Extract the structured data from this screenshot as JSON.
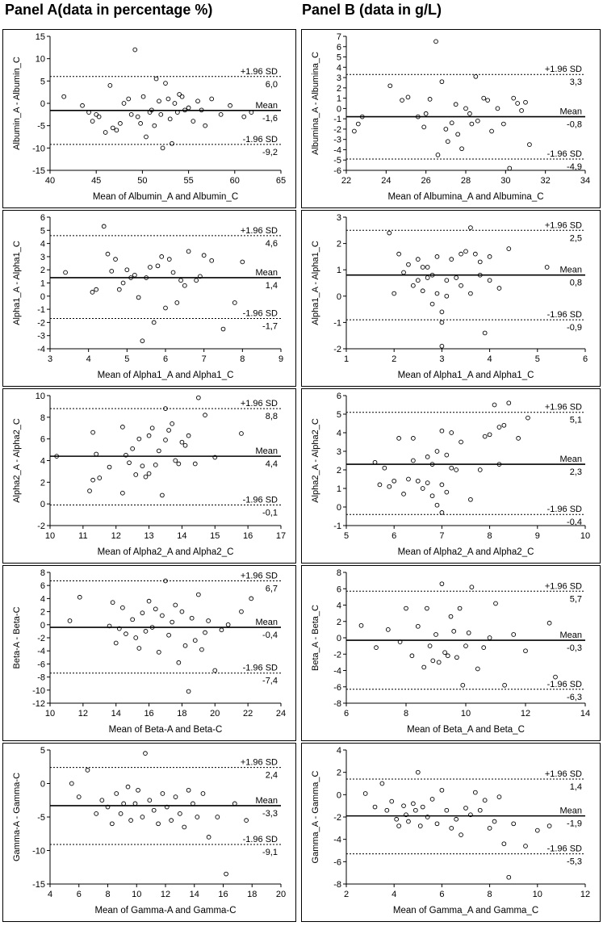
{
  "panels": {
    "a_title": "Panel A(data in percentage %)",
    "b_title": "Panel B (data in g/L)"
  },
  "chart_data": [
    {
      "type": "scatter",
      "panel": "A",
      "row": 1,
      "xlabel": "Mean of Albumin_A and Albumin_C",
      "ylabel": "Albumin_A - Albumin_C",
      "xlim": [
        40,
        65
      ],
      "xticks": [
        40,
        45,
        50,
        55,
        60,
        65
      ],
      "ylim": [
        -15,
        15
      ],
      "yticks": [
        -15,
        -10,
        -5,
        0,
        5,
        10,
        15
      ],
      "mean": -1.6,
      "upper": 6.0,
      "lower": -9.2,
      "upper_label": "+1.96 SD",
      "mean_label": "Mean",
      "lower_label": "-1.96 SD",
      "upper_value": "6,0",
      "mean_value": "-1,6",
      "lower_value": "-9,2",
      "x": [
        41.5,
        43.5,
        44.2,
        44.6,
        45.0,
        45.3,
        46.0,
        46.5,
        46.8,
        47.2,
        47.6,
        48.0,
        48.5,
        48.8,
        49.2,
        49.5,
        49.8,
        50.1,
        50.4,
        50.8,
        51.0,
        51.3,
        51.5,
        51.8,
        52.0,
        52.2,
        52.5,
        52.8,
        53.0,
        53.2,
        53.5,
        53.8,
        54.0,
        54.3,
        54.6,
        55.0,
        55.5,
        56.0,
        56.4,
        56.8,
        57.5,
        58.5,
        59.5,
        61.0,
        61.8
      ],
      "y": [
        1.5,
        -0.5,
        -2.0,
        -4.0,
        -2.5,
        -3.0,
        -6.5,
        4.0,
        -5.5,
        -6.0,
        -4.5,
        0.0,
        1.0,
        -2.5,
        12.0,
        -3.0,
        -4.5,
        1.5,
        -7.5,
        -2.0,
        -1.5,
        -5.0,
        5.5,
        0.5,
        -2.5,
        -10.0,
        4.5,
        1.0,
        -3.5,
        -9.0,
        0.0,
        -2.0,
        2.0,
        1.5,
        -1.5,
        -1.0,
        -4.0,
        0.5,
        -1.5,
        -5.0,
        1.0,
        -2.5,
        -0.5,
        -3.0,
        -2.0
      ]
    },
    {
      "type": "scatter",
      "panel": "B",
      "row": 1,
      "xlabel": "Mean of Albumina_A and Albumina_C",
      "ylabel": "Albumina_A - Albumina_C",
      "xlim": [
        22,
        34
      ],
      "xticks": [
        22,
        24,
        26,
        28,
        30,
        32,
        34
      ],
      "ylim": [
        -6,
        7
      ],
      "yticks": [
        -6,
        -5,
        -4,
        -3,
        -2,
        -1,
        0,
        1,
        2,
        3,
        4,
        5,
        6,
        7
      ],
      "mean": -0.8,
      "upper": 3.3,
      "lower": -4.9,
      "upper_label": "+1.96 SD",
      "mean_label": "Mean",
      "lower_label": "-1.96 SD",
      "upper_value": "3,3",
      "mean_value": "-0,8",
      "lower_value": "-4,9",
      "x": [
        22.4,
        22.6,
        22.8,
        24.2,
        24.8,
        25.1,
        25.6,
        25.9,
        26.0,
        26.2,
        26.5,
        26.6,
        26.8,
        27.0,
        27.1,
        27.3,
        27.5,
        27.6,
        27.8,
        28.0,
        28.2,
        28.3,
        28.5,
        28.6,
        28.9,
        29.1,
        29.3,
        29.6,
        29.9,
        30.2,
        30.4,
        30.6,
        30.8,
        31.0,
        31.2
      ],
      "y": [
        -2.2,
        -1.5,
        -0.8,
        2.2,
        0.8,
        1.1,
        -0.8,
        -1.8,
        -0.5,
        0.9,
        6.5,
        -4.5,
        2.6,
        -2.0,
        -3.2,
        -1.4,
        0.4,
        -2.5,
        -3.9,
        0.0,
        -0.5,
        -1.5,
        3.1,
        -1.2,
        1.0,
        0.8,
        -2.2,
        0.0,
        -1.5,
        -5.8,
        1.0,
        0.5,
        -0.2,
        0.6,
        -3.5
      ]
    },
    {
      "type": "scatter",
      "panel": "A",
      "row": 2,
      "xlabel": "Mean of Alpha1_A and Alpha1_C",
      "ylabel": "Alpha1_A - Alpha1_C",
      "xlim": [
        3,
        9
      ],
      "xticks": [
        3,
        4,
        5,
        6,
        7,
        8,
        9
      ],
      "ylim": [
        -4,
        6
      ],
      "yticks": [
        -4,
        -3,
        -2,
        -1,
        0,
        1,
        2,
        3,
        4,
        5,
        6
      ],
      "mean": 1.4,
      "upper": 4.6,
      "lower": -1.7,
      "upper_label": "+1.96 SD",
      "mean_label": "Mean",
      "lower_label": "-1.96 SD",
      "upper_value": "4,6",
      "mean_value": "1,4",
      "lower_value": "-1,7",
      "x": [
        3.4,
        4.1,
        4.2,
        4.4,
        4.5,
        4.6,
        4.7,
        4.8,
        4.9,
        5.0,
        5.1,
        5.2,
        5.3,
        5.4,
        5.5,
        5.6,
        5.7,
        5.8,
        5.9,
        6.0,
        6.1,
        6.2,
        6.3,
        6.4,
        6.5,
        6.6,
        6.8,
        6.9,
        7.0,
        7.2,
        7.5,
        7.8,
        8.0
      ],
      "y": [
        1.8,
        0.3,
        0.5,
        5.3,
        3.2,
        1.9,
        2.8,
        0.5,
        1.0,
        2.0,
        1.4,
        1.6,
        -0.1,
        -3.4,
        1.4,
        2.2,
        -2.0,
        2.3,
        3.0,
        -0.9,
        2.8,
        1.8,
        -0.5,
        1.2,
        0.8,
        3.4,
        1.2,
        1.5,
        3.1,
        2.7,
        -2.5,
        -0.5,
        2.6
      ]
    },
    {
      "type": "scatter",
      "panel": "B",
      "row": 2,
      "xlabel": "Mean of Alpha1_A and Alpha1_C",
      "ylabel": "Alpha1_A - Alpha1_C",
      "xlim": [
        1,
        6
      ],
      "xticks": [
        1,
        2,
        3,
        4,
        5,
        6
      ],
      "ylim": [
        -2,
        3
      ],
      "yticks": [
        -2,
        -1,
        0,
        1,
        2,
        3
      ],
      "mean": 0.8,
      "upper": 2.5,
      "lower": -0.9,
      "upper_label": "+1.96 SD",
      "mean_label": "Mean",
      "lower_label": "-1.96 SD",
      "upper_value": "2,5",
      "mean_value": "0,8",
      "lower_value": "-0,9",
      "x": [
        1.9,
        2.0,
        2.1,
        2.2,
        2.3,
        2.4,
        2.5,
        2.5,
        2.6,
        2.6,
        2.7,
        2.7,
        2.8,
        2.8,
        2.9,
        2.9,
        3.0,
        3.0,
        3.0,
        3.1,
        3.1,
        3.2,
        3.3,
        3.4,
        3.4,
        3.5,
        3.6,
        3.6,
        3.7,
        3.8,
        3.8,
        3.9,
        4.0,
        4.0,
        4.2,
        4.4,
        5.2
      ],
      "y": [
        2.4,
        0.1,
        1.6,
        0.9,
        1.2,
        0.4,
        1.4,
        0.6,
        1.1,
        0.2,
        0.7,
        1.1,
        -0.3,
        0.8,
        1.5,
        0.1,
        -1.0,
        -0.6,
        -1.9,
        0.6,
        0.0,
        1.4,
        0.7,
        1.6,
        0.4,
        1.7,
        2.6,
        0.1,
        1.6,
        1.3,
        0.8,
        -1.4,
        1.5,
        0.6,
        0.3,
        1.8,
        1.1
      ]
    },
    {
      "type": "scatter",
      "panel": "A",
      "row": 3,
      "xlabel": "Mean of Alpha2_A and Alpha2_C",
      "ylabel": "Alpha2_A - Alpha2_C",
      "xlim": [
        10,
        17
      ],
      "xticks": [
        10,
        11,
        12,
        13,
        14,
        15,
        16,
        17
      ],
      "ylim": [
        -2,
        10
      ],
      "yticks": [
        -2,
        0,
        2,
        4,
        6,
        8,
        10
      ],
      "mean": 4.4,
      "upper": 8.8,
      "lower": -0.1,
      "upper_label": "+1.96 SD",
      "mean_label": "Mean",
      "lower_label": "-1.96 SD",
      "upper_value": "8,8",
      "mean_value": "4,4",
      "lower_value": "-0,1",
      "x": [
        10.2,
        11.2,
        11.3,
        11.3,
        11.4,
        11.5,
        11.8,
        12.2,
        12.2,
        12.3,
        12.4,
        12.5,
        12.6,
        12.7,
        12.8,
        12.9,
        13.0,
        13.0,
        13.1,
        13.2,
        13.3,
        13.4,
        13.5,
        13.5,
        13.6,
        13.7,
        13.8,
        13.9,
        14.0,
        14.1,
        14.2,
        14.4,
        14.5,
        14.7,
        15.0,
        15.8
      ],
      "y": [
        4.4,
        1.2,
        2.2,
        6.6,
        4.6,
        2.4,
        3.4,
        7.1,
        1.0,
        4.5,
        3.8,
        5.1,
        2.7,
        6.0,
        3.5,
        2.5,
        6.3,
        2.8,
        7.0,
        3.6,
        4.9,
        0.8,
        5.9,
        8.8,
        6.8,
        7.4,
        4.0,
        3.7,
        5.7,
        5.4,
        6.3,
        3.7,
        9.8,
        8.2,
        4.3,
        6.5
      ]
    },
    {
      "type": "scatter",
      "panel": "B",
      "row": 3,
      "xlabel": "Mean of Alpha2_A and Alpha2_C",
      "ylabel": "Alpha2_A - Alpha2_C",
      "xlim": [
        5,
        10
      ],
      "xticks": [
        5,
        6,
        7,
        8,
        9,
        10
      ],
      "ylim": [
        -1,
        6
      ],
      "yticks": [
        -1,
        0,
        1,
        2,
        3,
        4,
        5,
        6
      ],
      "mean": 2.3,
      "upper": 5.1,
      "lower": -0.4,
      "upper_label": "+1.96 SD",
      "mean_label": "Mean",
      "lower_label": "-1.96 SD",
      "upper_value": "5,1",
      "mean_value": "2,3",
      "lower_value": "-0,4",
      "x": [
        5.6,
        5.7,
        5.8,
        5.9,
        6.0,
        6.1,
        6.2,
        6.3,
        6.4,
        6.4,
        6.5,
        6.6,
        6.7,
        6.7,
        6.8,
        6.8,
        6.9,
        6.9,
        7.0,
        7.0,
        7.0,
        7.1,
        7.1,
        7.2,
        7.2,
        7.3,
        7.4,
        7.6,
        7.8,
        7.9,
        8.0,
        8.1,
        8.2,
        8.2,
        8.3,
        8.4,
        8.6,
        8.8
      ],
      "y": [
        2.4,
        1.2,
        2.1,
        1.1,
        1.4,
        3.7,
        0.7,
        1.5,
        2.5,
        3.7,
        1.4,
        1.0,
        1.3,
        2.7,
        0.6,
        2.3,
        3.0,
        0.1,
        4.1,
        -0.3,
        1.2,
        2.8,
        0.8,
        2.1,
        4.0,
        2.0,
        3.5,
        0.4,
        2.0,
        3.8,
        3.9,
        5.5,
        4.3,
        2.3,
        4.4,
        5.6,
        3.7,
        4.8
      ]
    },
    {
      "type": "scatter",
      "panel": "A",
      "row": 4,
      "xlabel": "Mean of Beta-A and Beta-C",
      "ylabel": "Beta-A - Beta-C",
      "xlim": [
        10,
        24
      ],
      "xticks": [
        10,
        12,
        14,
        16,
        18,
        20,
        22,
        24
      ],
      "ylim": [
        -12,
        8
      ],
      "yticks": [
        -12,
        -10,
        -8,
        -6,
        -4,
        -2,
        0,
        2,
        4,
        6,
        8
      ],
      "mean": -0.4,
      "upper": 6.7,
      "lower": -7.4,
      "upper_label": "+1.96 SD",
      "mean_label": "Mean",
      "lower_label": "-1.96 SD",
      "upper_value": "6,7",
      "mean_value": "-0,4",
      "lower_value": "-7,4",
      "x": [
        11.2,
        11.8,
        13.6,
        13.8,
        14.0,
        14.2,
        14.4,
        14.6,
        15.0,
        15.2,
        15.4,
        15.6,
        15.8,
        16.0,
        16.2,
        16.4,
        16.6,
        16.8,
        17.0,
        17.2,
        17.4,
        17.6,
        17.8,
        18.0,
        18.2,
        18.4,
        18.6,
        18.8,
        19.0,
        19.2,
        19.4,
        19.6,
        20.0,
        20.4,
        20.8,
        21.6,
        22.2
      ],
      "y": [
        0.6,
        4.2,
        -0.2,
        3.4,
        -2.8,
        -0.6,
        2.6,
        -1.4,
        0.8,
        -2.0,
        -3.6,
        1.8,
        -1.0,
        3.6,
        -0.4,
        2.4,
        -4.2,
        1.4,
        6.7,
        -1.6,
        0.4,
        3.0,
        -5.8,
        2.0,
        -3.2,
        -10.2,
        1.0,
        -2.4,
        4.6,
        -3.8,
        -1.2,
        0.6,
        -7.0,
        -0.8,
        0.0,
        2.0,
        4.0
      ]
    },
    {
      "type": "scatter",
      "panel": "B",
      "row": 4,
      "xlabel": "Mean of Beta_A and Beta_C",
      "ylabel": "Beta_A - Beta_C",
      "xlim": [
        6,
        14
      ],
      "xticks": [
        6,
        8,
        10,
        12,
        14
      ],
      "ylim": [
        -8,
        8
      ],
      "yticks": [
        -8,
        -6,
        -4,
        -2,
        0,
        2,
        4,
        6,
        8
      ],
      "mean": -0.3,
      "upper": 5.7,
      "lower": -6.3,
      "upper_label": "+1.96 SD",
      "mean_label": "Mean",
      "lower_label": "-1.96 SD",
      "upper_value": "5,7",
      "mean_value": "-0,3",
      "lower_value": "-6,3",
      "x": [
        6.5,
        7.0,
        7.4,
        7.8,
        8.0,
        8.2,
        8.4,
        8.6,
        8.7,
        8.8,
        8.9,
        9.0,
        9.1,
        9.2,
        9.3,
        9.4,
        9.5,
        9.6,
        9.7,
        9.8,
        9.9,
        10.0,
        10.1,
        10.2,
        10.4,
        10.6,
        10.8,
        11.0,
        11.3,
        11.6,
        12.0,
        12.8,
        13.0
      ],
      "y": [
        1.5,
        -1.2,
        1.0,
        -0.5,
        3.6,
        -2.2,
        1.4,
        -3.6,
        3.6,
        -1.0,
        -2.8,
        0.4,
        -3.0,
        6.6,
        -1.8,
        -2.2,
        2.6,
        0.8,
        -2.4,
        3.6,
        -5.8,
        -1.0,
        0.6,
        6.2,
        -3.8,
        -1.2,
        0.0,
        4.2,
        -5.8,
        0.4,
        -1.6,
        1.8,
        -4.8
      ]
    },
    {
      "type": "scatter",
      "panel": "A",
      "row": 5,
      "xlabel": "Mean of Gamma-A and Gamma-C",
      "ylabel": "Gamma-A - Gamma-C",
      "xlim": [
        4,
        20
      ],
      "xticks": [
        4,
        6,
        8,
        10,
        12,
        14,
        16,
        18,
        20
      ],
      "ylim": [
        -15,
        5
      ],
      "yticks": [
        -15,
        -10,
        -5,
        0,
        5
      ],
      "mean": -3.3,
      "upper": 2.4,
      "lower": -9.1,
      "upper_label": "+1.96 SD",
      "mean_label": "Mean",
      "lower_label": "-1.96 SD",
      "upper_value": "2,4",
      "mean_value": "-3,3",
      "lower_value": "-9,1",
      "x": [
        5.5,
        6.0,
        6.6,
        7.2,
        7.6,
        8.0,
        8.3,
        8.6,
        8.9,
        9.1,
        9.4,
        9.6,
        9.9,
        10.1,
        10.4,
        10.6,
        10.9,
        11.2,
        11.5,
        11.8,
        12.1,
        12.4,
        12.7,
        13.0,
        13.3,
        13.6,
        13.9,
        14.2,
        14.6,
        15.0,
        15.6,
        16.2,
        16.8,
        17.6
      ],
      "y": [
        0.0,
        -2.0,
        2.0,
        -4.5,
        -2.5,
        -3.5,
        -6.0,
        -1.5,
        -4.5,
        -3.0,
        -0.5,
        -5.5,
        -3.0,
        -1.0,
        -5.0,
        4.5,
        -2.5,
        -4.0,
        -6.0,
        -1.5,
        -3.5,
        -5.5,
        -2.0,
        -4.5,
        -6.5,
        -1.0,
        -3.0,
        -5.0,
        -1.5,
        -8.0,
        -5.0,
        -13.5,
        -3.0,
        -5.5
      ]
    },
    {
      "type": "scatter",
      "panel": "B",
      "row": 5,
      "xlabel": "Mean of Gamma_A and Gamma_C",
      "ylabel": "Gamma_A - Gamma_C",
      "xlim": [
        2,
        12
      ],
      "xticks": [
        2,
        4,
        6,
        8,
        10,
        12
      ],
      "ylim": [
        -8,
        4
      ],
      "yticks": [
        -8,
        -6,
        -4,
        -2,
        0,
        2,
        4
      ],
      "mean": -1.9,
      "upper": 1.4,
      "lower": -5.3,
      "upper_label": "+1.96 SD",
      "mean_label": "Mean",
      "lower_label": "-1.96 SD",
      "upper_value": "1,4",
      "mean_value": "-1,9",
      "lower_value": "-5,3",
      "x": [
        2.8,
        3.2,
        3.5,
        3.7,
        3.9,
        4.1,
        4.2,
        4.4,
        4.5,
        4.6,
        4.8,
        4.9,
        5.0,
        5.1,
        5.2,
        5.4,
        5.6,
        5.8,
        6.0,
        6.2,
        6.4,
        6.6,
        6.8,
        7.0,
        7.2,
        7.4,
        7.6,
        7.8,
        8.0,
        8.2,
        8.4,
        8.6,
        8.8,
        9.0,
        9.5,
        10.0,
        10.5
      ],
      "y": [
        0.1,
        -1.1,
        1.0,
        -1.4,
        -0.6,
        -2.2,
        -2.8,
        -1.0,
        -1.8,
        -2.4,
        -0.8,
        -1.4,
        2.0,
        -2.8,
        -1.1,
        -2.0,
        -0.4,
        -2.6,
        0.4,
        -1.4,
        -3.0,
        -2.2,
        -3.6,
        -1.2,
        -1.8,
        0.2,
        -1.4,
        -0.5,
        -3.0,
        -2.4,
        -0.2,
        -4.4,
        -7.4,
        -2.6,
        -4.6,
        -3.2,
        -2.8
      ]
    }
  ]
}
